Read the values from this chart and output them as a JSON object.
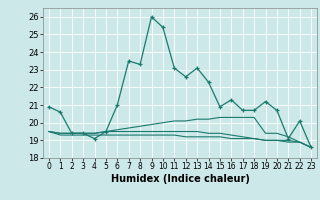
{
  "title": "",
  "xlabel": "Humidex (Indice chaleur)",
  "ylabel": "",
  "background_color": "#cce8e8",
  "grid_color": "#ffffff",
  "line_color": "#1a7a6e",
  "xlim": [
    -0.5,
    23.5
  ],
  "ylim": [
    18,
    26.5
  ],
  "yticks": [
    18,
    19,
    20,
    21,
    22,
    23,
    24,
    25,
    26
  ],
  "xticks": [
    0,
    1,
    2,
    3,
    4,
    5,
    6,
    7,
    8,
    9,
    10,
    11,
    12,
    13,
    14,
    15,
    16,
    17,
    18,
    19,
    20,
    21,
    22,
    23
  ],
  "series": [
    [
      20.9,
      20.6,
      19.4,
      19.4,
      19.1,
      19.5,
      21.0,
      23.5,
      23.3,
      26.0,
      25.4,
      23.1,
      22.6,
      23.1,
      22.3,
      20.9,
      21.3,
      20.7,
      20.7,
      21.2,
      20.7,
      19.1,
      20.1,
      18.6
    ],
    [
      19.5,
      19.4,
      19.4,
      19.4,
      19.4,
      19.5,
      19.6,
      19.7,
      19.8,
      19.9,
      20.0,
      20.1,
      20.1,
      20.2,
      20.2,
      20.3,
      20.3,
      20.3,
      20.3,
      19.4,
      19.4,
      19.2,
      18.9,
      18.6
    ],
    [
      19.5,
      19.4,
      19.4,
      19.4,
      19.4,
      19.5,
      19.5,
      19.5,
      19.5,
      19.5,
      19.5,
      19.5,
      19.5,
      19.5,
      19.4,
      19.4,
      19.3,
      19.2,
      19.1,
      19.0,
      19.0,
      19.0,
      18.9,
      18.6
    ],
    [
      19.5,
      19.3,
      19.3,
      19.3,
      19.3,
      19.3,
      19.3,
      19.3,
      19.3,
      19.3,
      19.3,
      19.3,
      19.2,
      19.2,
      19.2,
      19.2,
      19.1,
      19.1,
      19.1,
      19.0,
      19.0,
      18.9,
      18.9,
      18.6
    ]
  ]
}
